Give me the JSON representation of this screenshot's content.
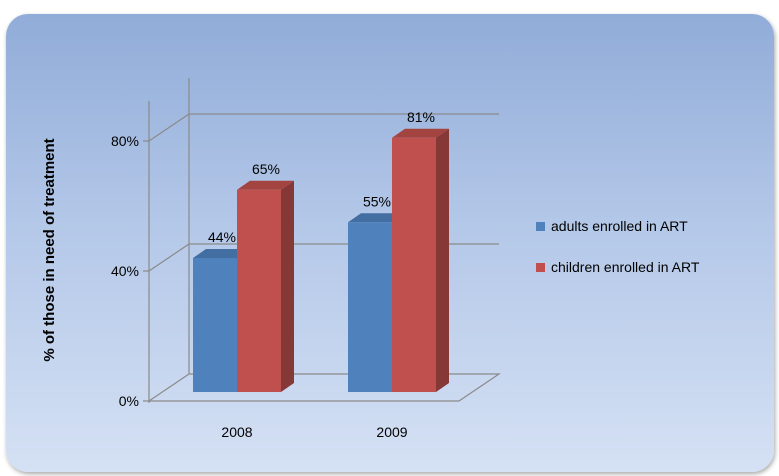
{
  "chart_data": {
    "type": "bar",
    "style": "3d-clustered-column",
    "categories": [
      "2008",
      "2009"
    ],
    "series": [
      {
        "name": "adults enrolled in ART",
        "values": [
          44,
          55
        ],
        "labels": [
          "44%",
          "55%"
        ],
        "color": "#4f81bd"
      },
      {
        "name": "children enrolled in ART",
        "values": [
          65,
          81
        ],
        "labels": [
          "65%",
          "81%"
        ],
        "color": "#c0504d"
      }
    ],
    "ylabel": "% of those in need of treatment",
    "xlabel": "",
    "title": "",
    "ylim": [
      0,
      80
    ],
    "yticks": [
      0,
      40,
      80
    ],
    "ytick_labels": [
      "0%",
      "40%",
      "80%"
    ],
    "grid": true,
    "legend_position": "right"
  }
}
